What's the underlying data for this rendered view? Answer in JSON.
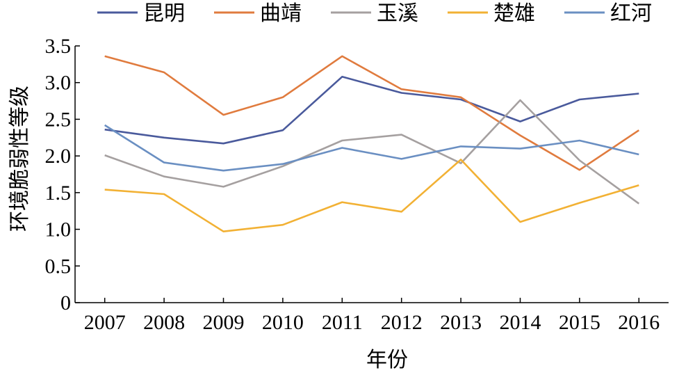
{
  "chart_data": {
    "type": "line",
    "title": "",
    "xlabel": "年份",
    "ylabel": "环境脆弱性等级",
    "x": [
      "2007",
      "2008",
      "2009",
      "2010",
      "2011",
      "2012",
      "2013",
      "2014",
      "2015",
      "2016"
    ],
    "ylim": [
      0,
      3.5
    ],
    "yticks": [
      "0",
      "0.5",
      "1.0",
      "1.5",
      "2.0",
      "2.5",
      "3.0",
      "3.5"
    ],
    "grid": false,
    "legend_position": "top",
    "series": [
      {
        "name": "昆明",
        "color": "#4a5a9c",
        "values": [
          2.36,
          2.25,
          2.17,
          2.35,
          3.08,
          2.86,
          2.77,
          2.47,
          2.77,
          2.85
        ]
      },
      {
        "name": "曲靖",
        "color": "#e07b3e",
        "values": [
          3.36,
          3.14,
          2.56,
          2.8,
          3.36,
          2.91,
          2.8,
          2.28,
          1.81,
          2.35
        ]
      },
      {
        "name": "玉溪",
        "color": "#a5a0a0",
        "values": [
          2.01,
          1.72,
          1.58,
          1.86,
          2.21,
          2.29,
          1.9,
          2.76,
          1.94,
          1.35
        ]
      },
      {
        "name": "楚雄",
        "color": "#f2b134",
        "values": [
          1.54,
          1.48,
          0.97,
          1.06,
          1.37,
          1.24,
          1.95,
          1.1,
          1.36,
          1.6
        ]
      },
      {
        "name": "红河",
        "color": "#6a8fc2",
        "values": [
          2.42,
          1.91,
          1.8,
          1.89,
          2.11,
          1.96,
          2.13,
          2.1,
          2.21,
          2.02
        ]
      }
    ]
  }
}
